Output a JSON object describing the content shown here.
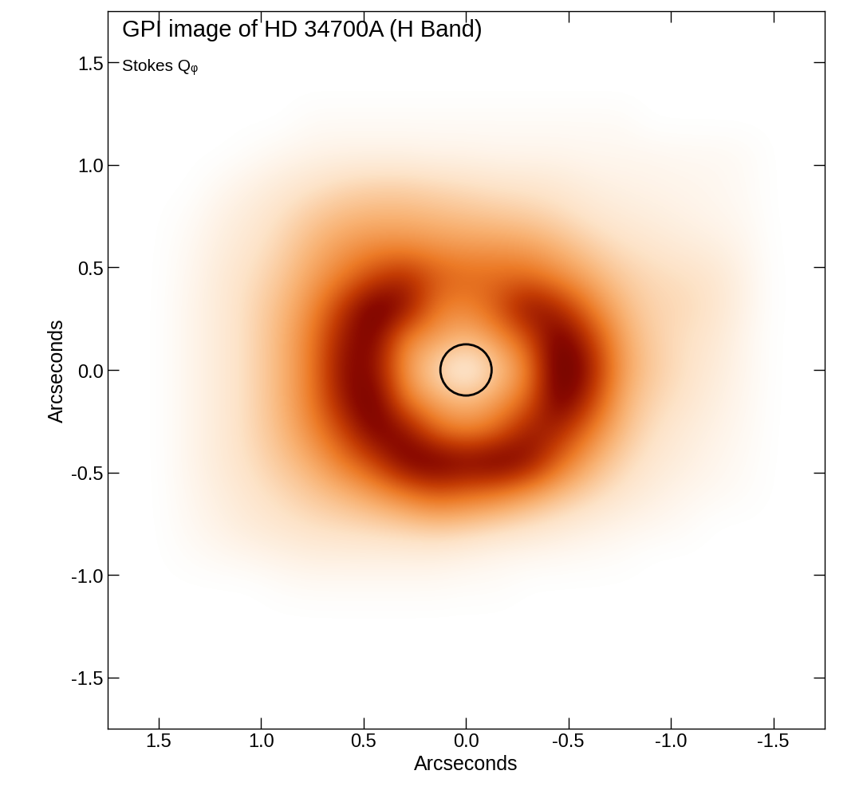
{
  "chart_data": {
    "type": "heatmap",
    "title": "GPI image of HD 34700A (H Band)",
    "subtitle": "Stokes Qᵩ",
    "x_label": "Arcseconds",
    "y_label": "Arcseconds",
    "xlim": [
      1.75,
      -1.75
    ],
    "ylim": [
      -1.75,
      1.75
    ],
    "xticks": [
      {
        "value": 1.5,
        "label": "1.5"
      },
      {
        "value": 1.0,
        "label": "1.0"
      },
      {
        "value": 0.5,
        "label": "0.5"
      },
      {
        "value": 0.0,
        "label": "0.0"
      },
      {
        "value": -0.5,
        "label": "-0.5"
      },
      {
        "value": -1.0,
        "label": "-1.0"
      },
      {
        "value": -1.5,
        "label": "-1.5"
      }
    ],
    "yticks": [
      {
        "value": -1.5,
        "label": "-1.5"
      },
      {
        "value": -1.0,
        "label": "-1.0"
      },
      {
        "value": -0.5,
        "label": "-0.5"
      },
      {
        "value": 0.0,
        "label": "0.0"
      },
      {
        "value": 0.5,
        "label": "0.5"
      },
      {
        "value": 1.0,
        "label": "1.0"
      },
      {
        "value": 1.5,
        "label": "1.5"
      }
    ],
    "grid": false,
    "x": [
      1.5,
      1.35,
      1.2,
      1.05,
      0.9,
      0.75,
      0.6,
      0.45,
      0.3,
      0.15,
      0.0,
      -0.15,
      -0.3,
      -0.45,
      -0.6,
      -0.75,
      -0.9,
      -1.05,
      -1.2,
      -1.35,
      -1.5
    ],
    "y": [
      1.5,
      1.35,
      1.2,
      1.05,
      0.9,
      0.75,
      0.6,
      0.45,
      0.3,
      0.15,
      0.0,
      -0.15,
      -0.3,
      -0.45,
      -0.6,
      -0.75,
      -0.9,
      -1.05,
      -1.2,
      -1.35,
      -1.5
    ],
    "value_range": [
      0,
      1
    ],
    "mask_center": [
      0,
      0
    ],
    "mask_radius": 0.125,
    "cells": [
      [
        0,
        0,
        0,
        0,
        0,
        0,
        0,
        0,
        0,
        0,
        0,
        0,
        0,
        0,
        0,
        0,
        0,
        0,
        0,
        0,
        0
      ],
      [
        0,
        0,
        0,
        0,
        0,
        0,
        0,
        0,
        0,
        0,
        0,
        0,
        0,
        0,
        0,
        0,
        0,
        0,
        0,
        0,
        0
      ],
      [
        0,
        0,
        0,
        0,
        0,
        0.03,
        0.03,
        0.03,
        0.03,
        0.03,
        0.03,
        0.03,
        0.03,
        0.03,
        0.03,
        0.03,
        0,
        0,
        0,
        0,
        0
      ],
      [
        0,
        0,
        0,
        0.02,
        0.05,
        0.07,
        0.08,
        0.08,
        0.08,
        0.07,
        0.07,
        0.06,
        0.06,
        0.06,
        0.05,
        0.05,
        0.05,
        0.04,
        0.04,
        0.03,
        0
      ],
      [
        0,
        0,
        0.04,
        0.08,
        0.12,
        0.16,
        0.2,
        0.22,
        0.22,
        0.2,
        0.18,
        0.16,
        0.15,
        0.13,
        0.1,
        0.08,
        0.07,
        0.06,
        0.05,
        0.03,
        0
      ],
      [
        0,
        0.02,
        0.08,
        0.12,
        0.18,
        0.25,
        0.3,
        0.32,
        0.32,
        0.3,
        0.28,
        0.26,
        0.24,
        0.2,
        0.15,
        0.12,
        0.1,
        0.08,
        0.06,
        0.04,
        0
      ],
      [
        0,
        0.04,
        0.1,
        0.15,
        0.22,
        0.32,
        0.4,
        0.45,
        0.45,
        0.42,
        0.4,
        0.4,
        0.38,
        0.32,
        0.24,
        0.18,
        0.15,
        0.12,
        0.1,
        0.06,
        0
      ],
      [
        0,
        0.05,
        0.12,
        0.18,
        0.26,
        0.38,
        0.5,
        0.65,
        0.75,
        0.6,
        0.55,
        0.55,
        0.55,
        0.45,
        0.35,
        0.25,
        0.2,
        0.18,
        0.15,
        0.08,
        0
      ],
      [
        0,
        0.06,
        0.12,
        0.2,
        0.3,
        0.45,
        0.7,
        0.95,
        0.85,
        0.5,
        0.45,
        0.6,
        0.85,
        0.75,
        0.5,
        0.32,
        0.22,
        0.2,
        0.16,
        0.08,
        0
      ],
      [
        0,
        0.06,
        0.12,
        0.2,
        0.32,
        0.5,
        0.8,
        0.9,
        0.45,
        0.38,
        0.3,
        0.4,
        0.6,
        0.95,
        0.7,
        0.38,
        0.24,
        0.18,
        0.14,
        0.06,
        0
      ],
      [
        0,
        0.06,
        0.12,
        0.2,
        0.32,
        0.5,
        0.85,
        0.85,
        0.4,
        0.2,
        0.05,
        0.25,
        0.45,
        1.0,
        0.8,
        0.4,
        0.25,
        0.18,
        0.12,
        0.06,
        0
      ],
      [
        0,
        0.06,
        0.12,
        0.2,
        0.32,
        0.5,
        0.8,
        0.95,
        0.5,
        0.35,
        0.3,
        0.38,
        0.55,
        0.95,
        0.7,
        0.35,
        0.22,
        0.16,
        0.1,
        0.05,
        0
      ],
      [
        0,
        0.06,
        0.12,
        0.2,
        0.3,
        0.45,
        0.65,
        0.9,
        0.85,
        0.55,
        0.45,
        0.55,
        0.8,
        0.75,
        0.5,
        0.3,
        0.18,
        0.12,
        0.08,
        0.04,
        0
      ],
      [
        0,
        0.06,
        0.12,
        0.18,
        0.26,
        0.35,
        0.5,
        0.65,
        0.9,
        0.95,
        0.9,
        0.95,
        0.85,
        0.55,
        0.35,
        0.22,
        0.14,
        0.1,
        0.06,
        0.03,
        0
      ],
      [
        0,
        0.05,
        0.1,
        0.15,
        0.2,
        0.26,
        0.32,
        0.4,
        0.5,
        0.6,
        0.55,
        0.5,
        0.4,
        0.3,
        0.22,
        0.15,
        0.1,
        0.06,
        0.04,
        0.02,
        0
      ],
      [
        0,
        0.04,
        0.08,
        0.12,
        0.15,
        0.18,
        0.2,
        0.22,
        0.25,
        0.28,
        0.26,
        0.22,
        0.18,
        0.14,
        0.1,
        0.07,
        0.05,
        0.03,
        0,
        0,
        0
      ],
      [
        0,
        0.02,
        0.04,
        0.06,
        0.08,
        0.1,
        0.1,
        0.1,
        0.1,
        0.1,
        0.08,
        0.06,
        0.05,
        0.04,
        0.03,
        0.02,
        0,
        0,
        0,
        0,
        0
      ],
      [
        0,
        0,
        0,
        0,
        0.02,
        0.03,
        0.03,
        0.03,
        0.03,
        0.03,
        0.02,
        0.02,
        0,
        0,
        0,
        0,
        0,
        0,
        0,
        0,
        0
      ],
      [
        0,
        0,
        0,
        0,
        0,
        0,
        0,
        0,
        0,
        0,
        0,
        0,
        0,
        0,
        0,
        0,
        0,
        0,
        0,
        0,
        0
      ],
      [
        0,
        0,
        0,
        0,
        0,
        0,
        0,
        0,
        0,
        0,
        0,
        0,
        0,
        0,
        0,
        0,
        0,
        0,
        0,
        0,
        0
      ],
      [
        0,
        0,
        0,
        0,
        0,
        0,
        0,
        0,
        0,
        0,
        0,
        0,
        0,
        0,
        0,
        0,
        0,
        0,
        0,
        0,
        0
      ]
    ]
  }
}
